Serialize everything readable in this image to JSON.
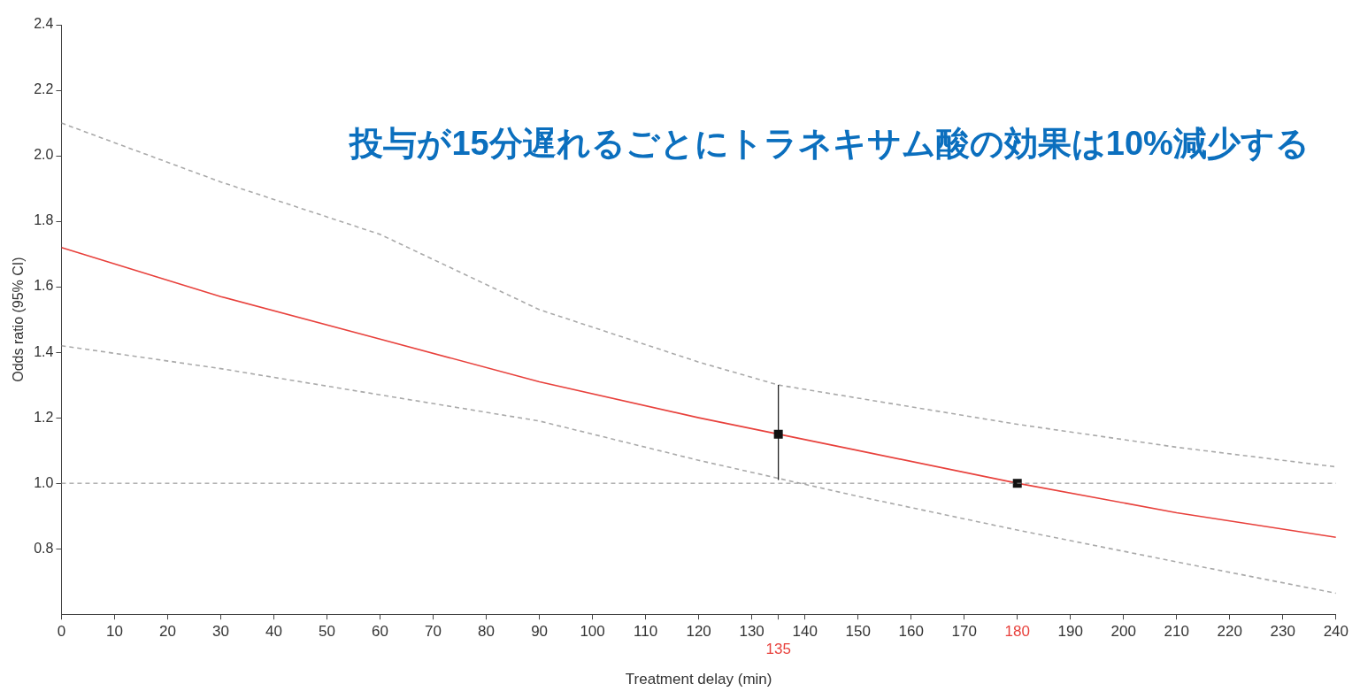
{
  "chart_data": {
    "type": "line",
    "xlabel": "Treatment delay (min)",
    "ylabel": "Odds ratio (95% CI)",
    "xlim": [
      0,
      240
    ],
    "ylim": [
      0.6,
      2.4
    ],
    "xticks": [
      0,
      10,
      20,
      30,
      40,
      50,
      60,
      70,
      80,
      90,
      100,
      110,
      120,
      130,
      {
        "value": 135,
        "label": null
      },
      140,
      150,
      160,
      170,
      180,
      190,
      200,
      210,
      220,
      230,
      240
    ],
    "yticks": [
      0.8,
      {
        "value": 1,
        "label": "1.0"
      },
      1.2,
      1.4,
      1.6,
      1.8,
      {
        "value": 2,
        "label": "2.0"
      },
      2.2,
      2.4
    ],
    "grid": false,
    "legend": false,
    "series": [
      {
        "type": "line",
        "color": "#e8413c",
        "line_style": "solid",
        "marker": "none",
        "x": [
          0,
          30,
          60,
          90,
          120,
          150,
          180,
          210,
          240
        ],
        "values": [
          1.72,
          1.57,
          1.44,
          1.31,
          1.2,
          1.1,
          1.0,
          0.91,
          0.835
        ]
      },
      {
        "type": "line",
        "color": "#aaaaaa",
        "line_style": "dashed",
        "marker": "none",
        "x": [
          0,
          30,
          60,
          90,
          120,
          135,
          150,
          180,
          210,
          240
        ],
        "values": [
          2.1,
          1.92,
          1.76,
          1.53,
          1.37,
          1.3,
          1.26,
          1.18,
          1.11,
          1.05
        ]
      },
      {
        "type": "line",
        "color": "#aaaaaa",
        "line_style": "dashed",
        "marker": "none",
        "x": [
          0,
          30,
          60,
          90,
          120,
          135,
          150,
          180,
          210,
          240
        ],
        "values": [
          1.42,
          1.35,
          1.27,
          1.19,
          1.07,
          1.015,
          0.96,
          0.857,
          0.76,
          0.664
        ]
      },
      {
        "type": "scatter",
        "color": "#111111",
        "marker": "square",
        "x": [
          135
        ],
        "values": [
          1.15
        ],
        "errors": [
          [
            1.01,
            1.3
          ]
        ]
      },
      {
        "type": "scatter",
        "color": "#111111",
        "marker": "square",
        "x": [
          180
        ],
        "values": [
          1.0
        ]
      }
    ],
    "ref_lines": [
      {
        "axis": "y",
        "value": 1.0,
        "color": "#888888",
        "line_style": "dashed"
      }
    ],
    "annotations": [
      "投与が15分遅れるごとにトラネキサム酸の効果は10%減少する",
      "135"
    ]
  }
}
